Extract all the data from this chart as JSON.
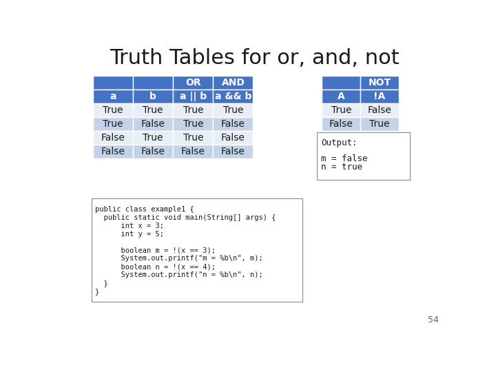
{
  "title": "Truth Tables for or, and, not",
  "title_fontsize": 22,
  "background_color": "#ffffff",
  "header_blue": "#4472c4",
  "row_light": "#c5d3e8",
  "row_white": "#e8eef5",
  "text_dark": "#333333",
  "header_text_color": "#ffffff",
  "or_table": {
    "headers_row1": [
      "",
      "",
      "OR",
      "AND"
    ],
    "headers_row2": [
      "a",
      "b",
      "a || b",
      "a && b"
    ],
    "rows": [
      [
        "True",
        "True",
        "True",
        "True"
      ],
      [
        "True",
        "False",
        "True",
        "False"
      ],
      [
        "False",
        "True",
        "True",
        "False"
      ],
      [
        "False",
        "False",
        "False",
        "False"
      ]
    ]
  },
  "not_table": {
    "headers_row1": [
      "",
      "NOT"
    ],
    "headers_row2": [
      "A",
      "!A"
    ],
    "rows": [
      [
        "True",
        "False"
      ],
      [
        "False",
        "True"
      ]
    ]
  },
  "code_lines": [
    "public class example1 {",
    "  public static void main(String[] args) {",
    "      int x = 3;",
    "      int y = 5;",
    "",
    "      boolean m = !(x == 3);",
    "      System.out.printf(\"m = %b\\n\", m);",
    "      boolean n = !(x == 4);",
    "      System.out.printf(\"n = %b\\n\", n);",
    "  }",
    "}"
  ],
  "output_lines": [
    "Output:",
    "",
    "m = false",
    "n = true"
  ],
  "page_number": "54",
  "code_font_size": 7.5,
  "table_font_size": 10,
  "header_font_size": 10
}
